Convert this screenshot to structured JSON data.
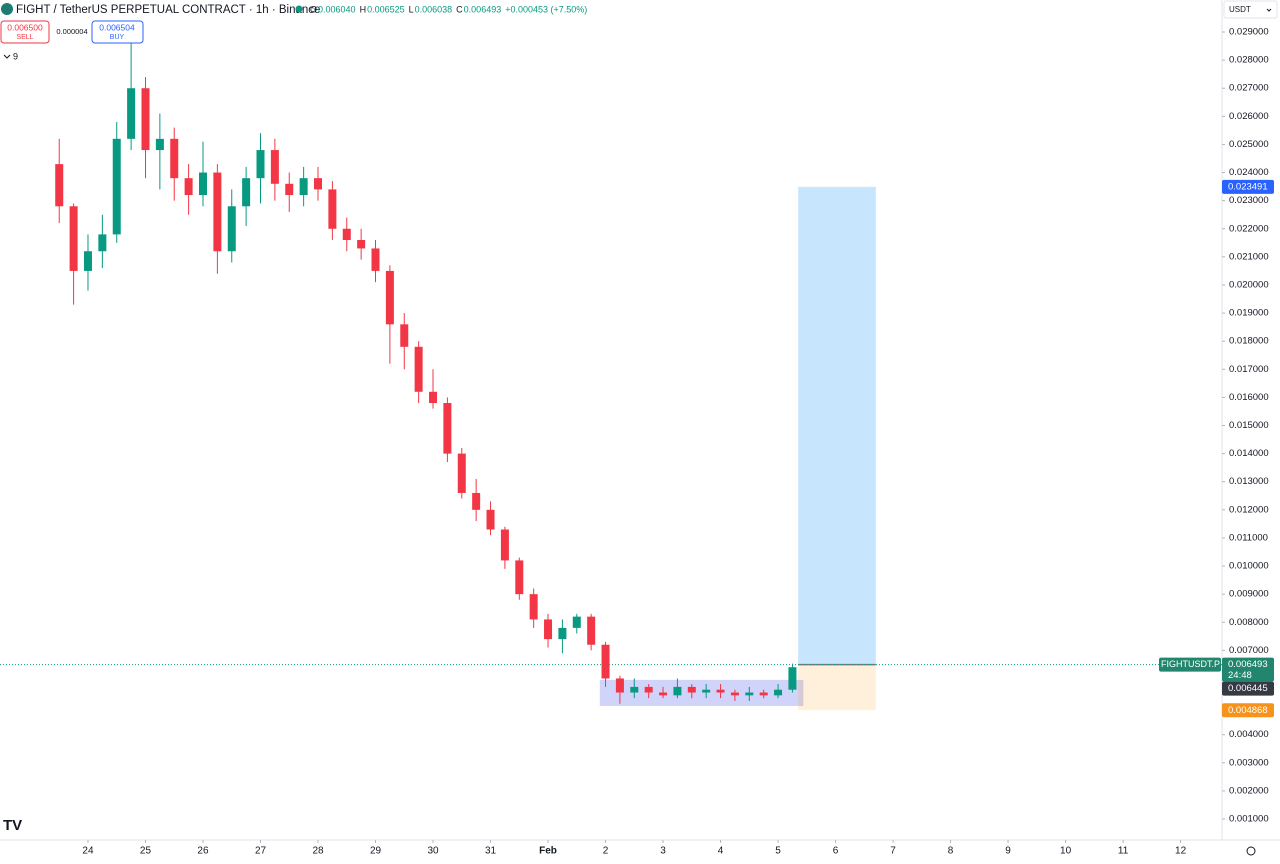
{
  "header": {
    "symbol": "FIGHT / TetherUS PERPETUAL CONTRACT · 1h · Binance",
    "ohlc": [
      {
        "key": "O",
        "value": "0.006040"
      },
      {
        "key": "H",
        "value": "0.006525"
      },
      {
        "key": "L",
        "value": "0.006038"
      },
      {
        "key": "C",
        "value": "0.006493"
      }
    ],
    "change": "+0.000453 (+7.50%)"
  },
  "trade": {
    "sell_price": "0.006500",
    "sell": "SELL",
    "spread": "0.000004",
    "buy_price": "0.006504",
    "buy": "BUY"
  },
  "indicators_count": "9",
  "currency": "USDT",
  "chart_data": {
    "type": "candlestick",
    "x": [
      23.5,
      23.75,
      24,
      24.25,
      24.5,
      24.75,
      25,
      25.25,
      25.5,
      25.75,
      26,
      26.25,
      26.5,
      26.75,
      27,
      27.25,
      27.5,
      27.75,
      28,
      28.25,
      28.5,
      28.75,
      29,
      29.25,
      29.5,
      29.75,
      30,
      30.25,
      30.5,
      30.75,
      31,
      31.25,
      31.5,
      31.75,
      32,
      32.25,
      32.5,
      32.75,
      33,
      33.25,
      33.5,
      33.75,
      34,
      34.25,
      34.5,
      34.75,
      35,
      35.25,
      35.5,
      35.75,
      36,
      36.25
    ],
    "open": [
      0.0243,
      0.0228,
      0.0205,
      0.0212,
      0.0218,
      0.0252,
      0.027,
      0.0248,
      0.0252,
      0.0238,
      0.0232,
      0.024,
      0.0212,
      0.0228,
      0.0238,
      0.0248,
      0.0236,
      0.0232,
      0.0238,
      0.0234,
      0.022,
      0.0216,
      0.0213,
      0.0205,
      0.0186,
      0.0178,
      0.0162,
      0.0158,
      0.014,
      0.0126,
      0.012,
      0.0113,
      0.0102,
      0.009,
      0.0081,
      0.0074,
      0.0078,
      0.0082,
      0.0072,
      0.006,
      0.0055,
      0.0057,
      0.0055,
      0.0054,
      0.0057,
      0.0055,
      0.0056,
      0.0055,
      0.0054,
      0.0055,
      0.0054,
      0.0056
    ],
    "high": [
      0.0252,
      0.0229,
      0.0218,
      0.0225,
      0.0258,
      0.0286,
      0.0274,
      0.0261,
      0.0256,
      0.0243,
      0.0251,
      0.0243,
      0.0234,
      0.0242,
      0.0254,
      0.0252,
      0.024,
      0.0242,
      0.0242,
      0.0237,
      0.0224,
      0.022,
      0.0216,
      0.0207,
      0.019,
      0.018,
      0.017,
      0.016,
      0.0142,
      0.0131,
      0.0123,
      0.0114,
      0.0103,
      0.0092,
      0.0083,
      0.0081,
      0.0083,
      0.0083,
      0.0073,
      0.0061,
      0.006,
      0.0058,
      0.0057,
      0.006,
      0.0058,
      0.0058,
      0.0058,
      0.0056,
      0.0057,
      0.0056,
      0.0058,
      0.00653
    ],
    "low": [
      0.0222,
      0.0193,
      0.0198,
      0.0206,
      0.0215,
      0.0248,
      0.0238,
      0.0234,
      0.023,
      0.0225,
      0.0228,
      0.0204,
      0.0208,
      0.0221,
      0.0229,
      0.023,
      0.0226,
      0.0228,
      0.023,
      0.0216,
      0.0212,
      0.0209,
      0.0201,
      0.0172,
      0.017,
      0.0158,
      0.0156,
      0.0137,
      0.0124,
      0.0116,
      0.0111,
      0.0099,
      0.0088,
      0.0078,
      0.0071,
      0.0069,
      0.0076,
      0.007,
      0.0057,
      0.0051,
      0.0053,
      0.0053,
      0.0053,
      0.0053,
      0.0053,
      0.0053,
      0.0053,
      0.0052,
      0.0052,
      0.0053,
      0.0053,
      0.0055
    ],
    "close": [
      0.0228,
      0.0205,
      0.0212,
      0.0218,
      0.0252,
      0.027,
      0.0248,
      0.0252,
      0.0238,
      0.0232,
      0.024,
      0.0212,
      0.0228,
      0.0238,
      0.0248,
      0.0236,
      0.0232,
      0.0238,
      0.0234,
      0.022,
      0.0216,
      0.0213,
      0.0205,
      0.0186,
      0.0178,
      0.0162,
      0.0158,
      0.014,
      0.0126,
      0.012,
      0.0113,
      0.0102,
      0.009,
      0.0081,
      0.0074,
      0.0078,
      0.0082,
      0.0072,
      0.006,
      0.0055,
      0.0057,
      0.0055,
      0.0054,
      0.0057,
      0.0055,
      0.0056,
      0.0055,
      0.0054,
      0.0055,
      0.0054,
      0.0056,
      0.0064
    ],
    "up_color": "#089981",
    "down_color": "#f23645",
    "xlim": [
      22.47,
      43.72
    ],
    "ylim": [
      0.000253,
      0.030139
    ],
    "xticks": [
      24,
      25,
      26,
      27,
      28,
      29,
      30,
      31,
      {
        "value": 32,
        "label": "Feb"
      },
      {
        "value": 33,
        "label": "2"
      },
      {
        "value": 34,
        "label": "3"
      },
      {
        "value": 35,
        "label": "4"
      },
      {
        "value": 36,
        "label": "5"
      },
      {
        "value": 37,
        "label": "6"
      },
      {
        "value": 38,
        "label": "7"
      },
      {
        "value": 39,
        "label": "8"
      },
      {
        "value": 40,
        "label": "9"
      },
      {
        "value": 41,
        "label": "10"
      },
      {
        "value": 42,
        "label": "11"
      },
      {
        "value": 43,
        "label": "12"
      }
    ],
    "yticks": [
      {
        "value": 0.029,
        "label": "0.029000"
      },
      {
        "value": 0.028,
        "label": "0.028000"
      },
      {
        "value": 0.027,
        "label": "0.027000"
      },
      {
        "value": 0.026,
        "label": "0.026000"
      },
      {
        "value": 0.025,
        "label": "0.025000"
      },
      {
        "value": 0.024,
        "label": "0.024000"
      },
      {
        "value": 0.023,
        "label": "0.023000"
      },
      {
        "value": 0.022,
        "label": "0.022000"
      },
      {
        "value": 0.021,
        "label": "0.021000"
      },
      {
        "value": 0.02,
        "label": "0.020000"
      },
      {
        "value": 0.019,
        "label": "0.019000"
      },
      {
        "value": 0.018,
        "label": "0.018000"
      },
      {
        "value": 0.017,
        "label": "0.017000"
      },
      {
        "value": 0.016,
        "label": "0.016000"
      },
      {
        "value": 0.015,
        "label": "0.015000"
      },
      {
        "value": 0.014,
        "label": "0.014000"
      },
      {
        "value": 0.013,
        "label": "0.013000"
      },
      {
        "value": 0.012,
        "label": "0.012000"
      },
      {
        "value": 0.011,
        "label": "0.011000"
      },
      {
        "value": 0.01,
        "label": "0.010000"
      },
      {
        "value": 0.009,
        "label": "0.009000"
      },
      {
        "value": 0.008,
        "label": "0.008000"
      },
      {
        "value": 0.007,
        "label": "0.007000"
      },
      {
        "value": 0.004,
        "label": "0.004000"
      },
      {
        "value": 0.003,
        "label": "0.003000"
      },
      {
        "value": 0.002,
        "label": "0.002000"
      },
      {
        "value": 0.001,
        "label": "0.001000"
      }
    ],
    "grid": false,
    "range_box": {
      "x": [
        32.9,
        36.44
      ],
      "y": [
        0.00502,
        0.00595
      ]
    },
    "position": {
      "x": [
        36.35,
        37.7
      ],
      "target": 0.023491,
      "entry": 0.006493,
      "stop": 0.004868
    },
    "symbol_label": "FIGHTUSDT.P",
    "last_price": 0.006493,
    "countdown": "24:48",
    "reference_price": 0.006445
  }
}
